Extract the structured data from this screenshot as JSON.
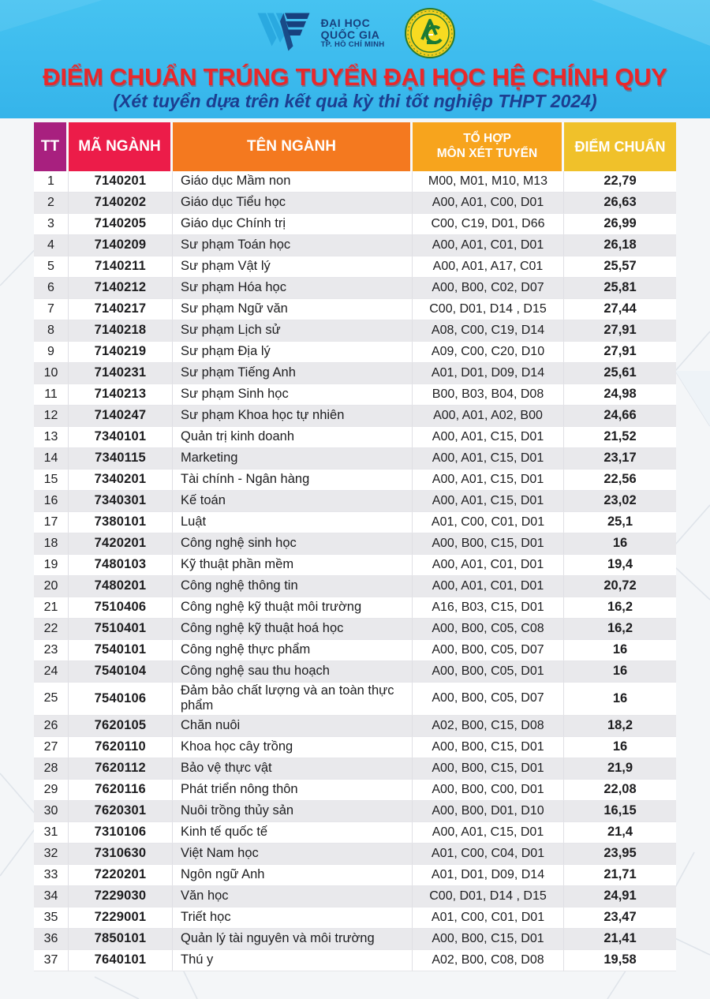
{
  "header": {
    "vnu_logo": {
      "line1": "ĐẠI HỌC",
      "line2": "QUỐC GIA",
      "line3": "TP. HỒ CHÍ MINH"
    },
    "agu_logo": "Trường Đại học An Giang emblem",
    "title": "ĐIỂM CHUẨN TRÚNG TUYỂN ĐẠI HỌC HỆ CHÍNH QUY",
    "subtitle": "(Xét tuyển dựa trên kết quả kỳ thi tốt nghiệp THPT 2024)"
  },
  "table": {
    "columns": {
      "tt": "TT",
      "code": "MÃ NGÀNH",
      "name": "TÊN NGÀNH",
      "combo_line1": "TỔ HỢP",
      "combo_line2": "MÔN XÉT TUYỂN",
      "score": "ĐIỂM CHUẨN"
    },
    "rows": [
      {
        "tt": "1",
        "code": "7140201",
        "name": "Giáo dục Mầm non",
        "combo": "M00, M01, M10, M13",
        "score": "22,79"
      },
      {
        "tt": "2",
        "code": "7140202",
        "name": "Giáo dục Tiểu học",
        "combo": "A00, A01, C00, D01",
        "score": "26,63"
      },
      {
        "tt": "3",
        "code": "7140205",
        "name": "Giáo dục Chính trị",
        "combo": "C00, C19, D01, D66",
        "score": "26,99"
      },
      {
        "tt": "4",
        "code": "7140209",
        "name": "Sư phạm Toán học",
        "combo": "A00, A01, C01, D01",
        "score": "26,18"
      },
      {
        "tt": "5",
        "code": "7140211",
        "name": "Sư phạm Vật lý",
        "combo": "A00, A01, A17, C01",
        "score": "25,57"
      },
      {
        "tt": "6",
        "code": "7140212",
        "name": "Sư phạm Hóa học",
        "combo": "A00, B00, C02, D07",
        "score": "25,81"
      },
      {
        "tt": "7",
        "code": "7140217",
        "name": "Sư phạm Ngữ văn",
        "combo": "C00, D01, D14 , D15",
        "score": "27,44"
      },
      {
        "tt": "8",
        "code": "7140218",
        "name": "Sư phạm Lịch sử",
        "combo": "A08, C00, C19, D14",
        "score": "27,91"
      },
      {
        "tt": "9",
        "code": "7140219",
        "name": "Sư phạm Địa lý",
        "combo": "A09, C00, C20, D10",
        "score": "27,91"
      },
      {
        "tt": "10",
        "code": "7140231",
        "name": "Sư phạm Tiếng Anh",
        "combo": "A01, D01, D09, D14",
        "score": "25,61"
      },
      {
        "tt": "11",
        "code": "7140213",
        "name": "Sư phạm Sinh học",
        "combo": "B00, B03, B04, D08",
        "score": "24,98"
      },
      {
        "tt": "12",
        "code": "7140247",
        "name": "Sư phạm Khoa học tự nhiên",
        "combo": "A00, A01, A02, B00",
        "score": "24,66"
      },
      {
        "tt": "13",
        "code": "7340101",
        "name": "Quản trị kinh doanh",
        "combo": "A00, A01, C15, D01",
        "score": "21,52"
      },
      {
        "tt": "14",
        "code": "7340115",
        "name": "Marketing",
        "combo": "A00, A01, C15, D01",
        "score": "23,17"
      },
      {
        "tt": "15",
        "code": "7340201",
        "name": "Tài chính - Ngân hàng",
        "combo": "A00, A01, C15, D01",
        "score": "22,56"
      },
      {
        "tt": "16",
        "code": "7340301",
        "name": "Kế toán",
        "combo": "A00, A01, C15, D01",
        "score": "23,02"
      },
      {
        "tt": "17",
        "code": "7380101",
        "name": "Luật",
        "combo": "A01, C00, C01, D01",
        "score": "25,1"
      },
      {
        "tt": "18",
        "code": "7420201",
        "name": "Công nghệ sinh học",
        "combo": "A00, B00, C15, D01",
        "score": "16"
      },
      {
        "tt": "19",
        "code": "7480103",
        "name": "Kỹ thuật phần mềm",
        "combo": "A00, A01, C01, D01",
        "score": "19,4"
      },
      {
        "tt": "20",
        "code": "7480201",
        "name": "Công nghệ thông tin",
        "combo": "A00, A01, C01, D01",
        "score": "20,72"
      },
      {
        "tt": "21",
        "code": "7510406",
        "name": "Công nghệ kỹ thuật môi trường",
        "combo": "A16, B03, C15, D01",
        "score": "16,2"
      },
      {
        "tt": "22",
        "code": "7510401",
        "name": "Công nghệ kỹ thuật hoá học",
        "combo": "A00, B00, C05, C08",
        "score": "16,2"
      },
      {
        "tt": "23",
        "code": "7540101",
        "name": "Công nghệ thực phẩm",
        "combo": "A00, B00, C05, D07",
        "score": "16"
      },
      {
        "tt": "24",
        "code": "7540104",
        "name": "Công nghệ sau thu hoạch",
        "combo": "A00, B00, C05, D01",
        "score": "16"
      },
      {
        "tt": "25",
        "code": "7540106",
        "name": "Đảm bảo chất lượng và an toàn thực phẩm",
        "combo": "A00, B00, C05, D07",
        "score": "16"
      },
      {
        "tt": "26",
        "code": "7620105",
        "name": "Chăn nuôi",
        "combo": "A02, B00, C15, D08",
        "score": "18,2"
      },
      {
        "tt": "27",
        "code": "7620110",
        "name": "Khoa học cây trồng",
        "combo": "A00, B00, C15, D01",
        "score": "16"
      },
      {
        "tt": "28",
        "code": "7620112",
        "name": "Bảo vệ thực vật",
        "combo": "A00, B00, C15, D01",
        "score": "21,9"
      },
      {
        "tt": "29",
        "code": "7620116",
        "name": "Phát triển nông thôn",
        "combo": "A00, B00, C00, D01",
        "score": "22,08"
      },
      {
        "tt": "30",
        "code": "7620301",
        "name": "Nuôi trồng thủy sản",
        "combo": "A00, B00, D01, D10",
        "score": "16,15"
      },
      {
        "tt": "31",
        "code": "7310106",
        "name": "Kinh tế quốc tế",
        "combo": "A00, A01, C15, D01",
        "score": "21,4"
      },
      {
        "tt": "32",
        "code": "7310630",
        "name": "Việt Nam học",
        "combo": "A01, C00, C04, D01",
        "score": "23,95"
      },
      {
        "tt": "33",
        "code": "7220201",
        "name": "Ngôn ngữ Anh",
        "combo": "A01, D01, D09, D14",
        "score": "21,71"
      },
      {
        "tt": "34",
        "code": "7229030",
        "name": "Văn học",
        "combo": "C00, D01, D14 , D15",
        "score": "24,91"
      },
      {
        "tt": "35",
        "code": "7229001",
        "name": "Triết học",
        "combo": "A01, C00, C01, D01",
        "score": "23,47"
      },
      {
        "tt": "36",
        "code": "7850101",
        "name": "Quản lý tài nguyên và môi trường",
        "combo": "A00, B00, C15, D01",
        "score": "21,41"
      },
      {
        "tt": "37",
        "code": "7640101",
        "name": "Thú y",
        "combo": "A02, B00, C08, D08",
        "score": "19,58"
      }
    ]
  },
  "colors": {
    "band_blue": "#3bbcee",
    "title_red": "#e9282b",
    "subtitle_navy": "#1c3e90",
    "header_tt": "#a8207f",
    "header_code": "#ec1c49",
    "header_name": "#f4791f",
    "header_combo": "#f7a41d",
    "header_score": "#f0c12a",
    "row_stripe": "#e9e9ec"
  }
}
